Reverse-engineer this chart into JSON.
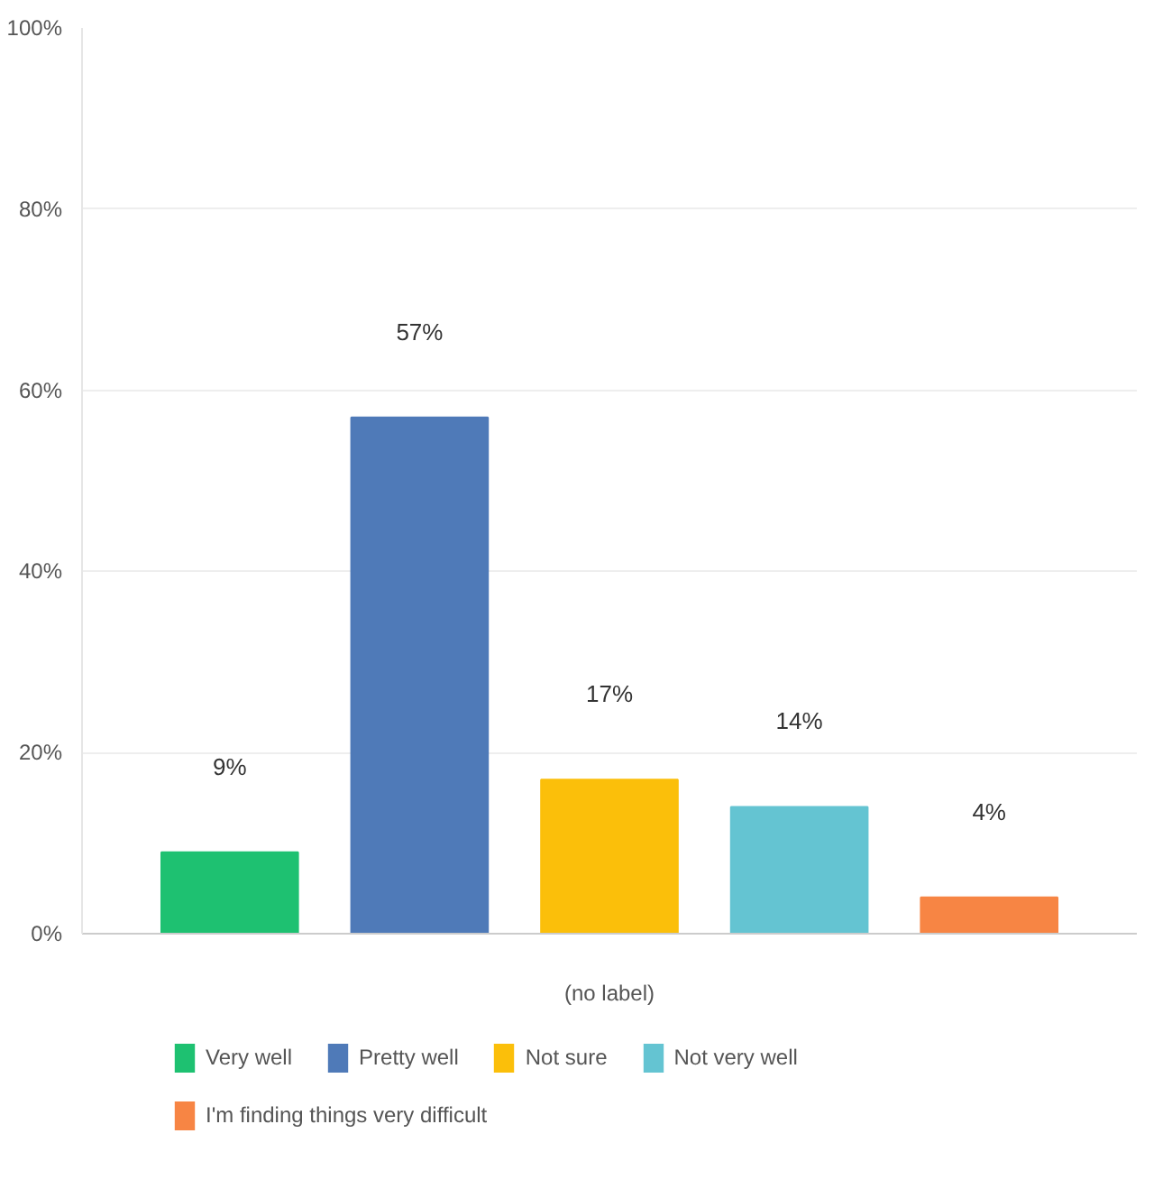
{
  "chart_data": {
    "type": "bar",
    "categories": [
      "(no label)"
    ],
    "series": [
      {
        "name": "Very well",
        "color": "#1ec171",
        "values": [
          9
        ],
        "value_labels": [
          "9%"
        ]
      },
      {
        "name": "Pretty well",
        "color": "#4f7ab8",
        "values": [
          57
        ],
        "value_labels": [
          "57%"
        ]
      },
      {
        "name": "Not sure",
        "color": "#fbbf0a",
        "values": [
          17
        ],
        "value_labels": [
          "17%"
        ]
      },
      {
        "name": "Not very well",
        "color": "#64c4d2",
        "values": [
          14
        ],
        "value_labels": [
          "14%"
        ]
      },
      {
        "name": "I'm finding things very difficult",
        "color": "#f78544",
        "values": [
          4
        ],
        "value_labels": [
          "4%"
        ]
      }
    ],
    "ylim": [
      0,
      100
    ],
    "yticks": [
      {
        "value": 0,
        "label": "0%"
      },
      {
        "value": 20,
        "label": "20%"
      },
      {
        "value": 40,
        "label": "40%"
      },
      {
        "value": 60,
        "label": "60%"
      },
      {
        "value": 80,
        "label": "80%"
      },
      {
        "value": 100,
        "label": "100%"
      }
    ],
    "grid": "y",
    "legend": "bottom"
  }
}
